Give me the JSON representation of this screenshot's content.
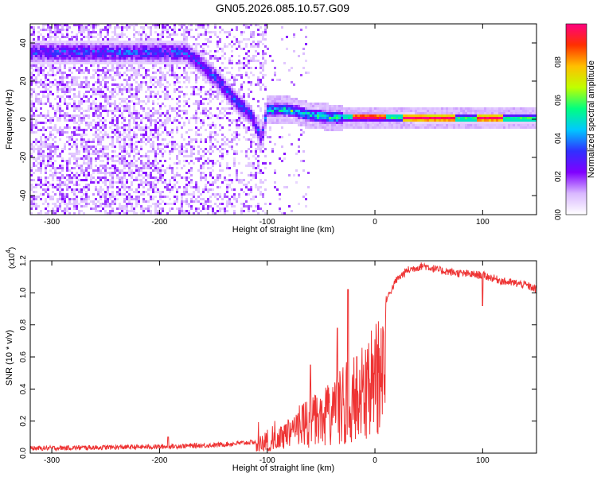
{
  "title": "GN05.2026.085.10.57.G09",
  "chart_data": [
    {
      "type": "heatmap",
      "xlabel": "Height of straight line (km)",
      "ylabel": "Frequency (Hz)",
      "xlim": [
        -320,
        150
      ],
      "ylim": [
        -50,
        50
      ],
      "xticks": [
        -300,
        -200,
        -100,
        0,
        100
      ],
      "yticks": [
        -40,
        -20,
        0,
        20,
        40
      ],
      "colorbar": {
        "label": "Normalized spectral amplitude",
        "range": [
          0.0,
          1.0
        ],
        "ticks": [
          0.0,
          0.2,
          0.4,
          0.6,
          0.8
        ],
        "colormap": [
          "#ffffff",
          "#d9b8ff",
          "#8000ff",
          "#3030ff",
          "#00c8ff",
          "#00ff80",
          "#c0ff00",
          "#ffc000",
          "#ff3000",
          "#ff0080"
        ]
      },
      "features": {
        "scatter_region_x": [
          -320,
          -100
        ],
        "ridge": [
          {
            "x": -175,
            "y": 35
          },
          {
            "x": -160,
            "y": 28
          },
          {
            "x": -145,
            "y": 20
          },
          {
            "x": -130,
            "y": 10
          },
          {
            "x": -115,
            "y": 2
          },
          {
            "x": -105,
            "y": -10
          },
          {
            "x": -100,
            "y": 5
          },
          {
            "x": -80,
            "y": 5
          },
          {
            "x": -60,
            "y": 2
          },
          {
            "x": -40,
            "y": 1
          },
          {
            "x": -20,
            "y": 1
          },
          {
            "x": 0,
            "y": 1
          },
          {
            "x": 50,
            "y": 0.5
          },
          {
            "x": 100,
            "y": 0.5
          },
          {
            "x": 150,
            "y": 0.5
          }
        ],
        "peak_segments_x": [
          [
            -20,
            10
          ],
          [
            25,
            75
          ],
          [
            95,
            120
          ]
        ]
      }
    },
    {
      "type": "line",
      "xlabel": "Height of straight line (km)",
      "ylabel": "SNR (10 * v/v)",
      "y_multiplier": "(x10",
      "y_multiplier_exp": "4",
      "y_multiplier_close": ")",
      "xlim": [
        -320,
        150
      ],
      "ylim": [
        0,
        1.2
      ],
      "xticks": [
        -300,
        -200,
        -100,
        0,
        100
      ],
      "yticks": [
        0.0,
        0.2,
        0.4,
        0.6,
        0.8,
        1.0,
        1.2
      ],
      "series": [
        {
          "color": "#ee3333",
          "envelope": [
            {
              "x": -320,
              "y": 0.03
            },
            {
              "x": -200,
              "y": 0.04
            },
            {
              "x": -150,
              "y": 0.05
            },
            {
              "x": -110,
              "y": 0.07
            },
            {
              "x": -100,
              "y": 0.1
            },
            {
              "x": -90,
              "y": 0.15
            },
            {
              "x": -80,
              "y": 0.22
            },
            {
              "x": -70,
              "y": 0.28
            },
            {
              "x": -60,
              "y": 0.35
            },
            {
              "x": -50,
              "y": 0.4
            },
            {
              "x": -40,
              "y": 0.45
            },
            {
              "x": -30,
              "y": 0.55
            },
            {
              "x": -20,
              "y": 0.62
            },
            {
              "x": -10,
              "y": 0.68
            },
            {
              "x": 0,
              "y": 0.82
            },
            {
              "x": 10,
              "y": 0.95
            },
            {
              "x": 20,
              "y": 1.08
            },
            {
              "x": 30,
              "y": 1.14
            },
            {
              "x": 45,
              "y": 1.17
            },
            {
              "x": 60,
              "y": 1.14
            },
            {
              "x": 80,
              "y": 1.12
            },
            {
              "x": 100,
              "y": 1.11
            },
            {
              "x": 120,
              "y": 1.07
            },
            {
              "x": 140,
              "y": 1.05
            },
            {
              "x": 150,
              "y": 1.02
            }
          ],
          "spikes": [
            {
              "x": -25,
              "y": 1.02
            },
            {
              "x": -35,
              "y": 0.78
            },
            {
              "x": -60,
              "y": 0.55
            },
            {
              "x": -28,
              "y": 0.06
            },
            {
              "x": 100,
              "y": 0.92
            },
            {
              "x": -192,
              "y": 0.1
            }
          ]
        }
      ]
    }
  ]
}
